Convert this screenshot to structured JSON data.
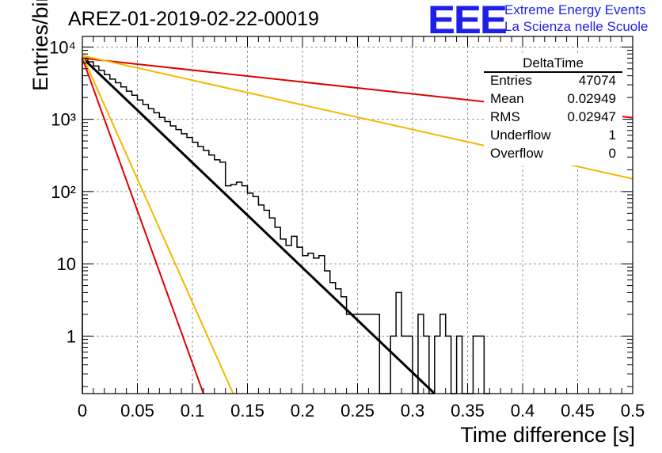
{
  "title": "AREZ-01-2019-02-22-00019",
  "logo": {
    "mark": "EEE",
    "line1": "Extreme Energy Events",
    "line2": "La Scienza nelle Scuole",
    "color": "#1f1fe6"
  },
  "stats": {
    "name": "DeltaTime",
    "rows": [
      {
        "label": "Entries",
        "value": "47074"
      },
      {
        "label": "Mean",
        "value": "0.02949"
      },
      {
        "label": "RMS",
        "value": "0.02947"
      },
      {
        "label": "Underflow",
        "value": "1"
      },
      {
        "label": "Overflow",
        "value": "0"
      }
    ]
  },
  "chart_data": {
    "type": "line",
    "xlabel": "Time difference [s]",
    "ylabel": "Entries/bin",
    "xlim": [
      0,
      0.5
    ],
    "ylim": [
      0.16,
      14000
    ],
    "yscale": "log",
    "grid": true,
    "xticks": [
      0,
      0.05,
      0.1,
      0.15,
      0.2,
      0.25,
      0.3,
      0.35,
      0.4,
      0.45,
      0.5
    ],
    "xtick_labels": [
      "0",
      "0.05",
      "0.1",
      "0.15",
      "0.2",
      "0.25",
      "0.3",
      "0.35",
      "0.4",
      "0.45",
      "0.5"
    ],
    "yticks": [
      1,
      10,
      100,
      1000,
      10000
    ],
    "ytick_labels": [
      "1",
      "10",
      "10²",
      "10³",
      "10⁴"
    ],
    "histogram": {
      "bin_width": 0.005,
      "color": "#000000",
      "values": [
        7000,
        6250,
        5450,
        4750,
        4150,
        3600,
        3200,
        2800,
        2450,
        2150,
        1850,
        1600,
        1400,
        1230,
        1060,
        930,
        810,
        720,
        630,
        560,
        480,
        420,
        370,
        320,
        275,
        255,
        120,
        125,
        135,
        120,
        95,
        85,
        65,
        55,
        43,
        32,
        22,
        18,
        24,
        17,
        13,
        14,
        12,
        13,
        8,
        5.5,
        4.5,
        3.5,
        2,
        2,
        2,
        2,
        2,
        2,
        0.16,
        0.16,
        1,
        4,
        1,
        1,
        0.16,
        2,
        1,
        0.16,
        1,
        2,
        1,
        0.16,
        1,
        0.16,
        0.16,
        1,
        1,
        0.16
      ]
    },
    "fits": [
      {
        "color": "#000000",
        "x": [
          0,
          0.32
        ],
        "y": [
          7100,
          0.16
        ],
        "width": 3
      },
      {
        "color": "#e00000",
        "x": [
          0,
          0.5
        ],
        "y": [
          7000,
          1050
        ],
        "width": 2
      },
      {
        "color": "#f5b800",
        "x": [
          0,
          0.5
        ],
        "y": [
          7600,
          150
        ],
        "width": 2
      },
      {
        "color": "#e00000",
        "x": [
          0,
          0.11
        ],
        "y": [
          7000,
          0.16
        ],
        "width": 2
      },
      {
        "color": "#f5b800",
        "x": [
          0,
          0.137
        ],
        "y": [
          7600,
          0.16
        ],
        "width": 2
      }
    ]
  }
}
